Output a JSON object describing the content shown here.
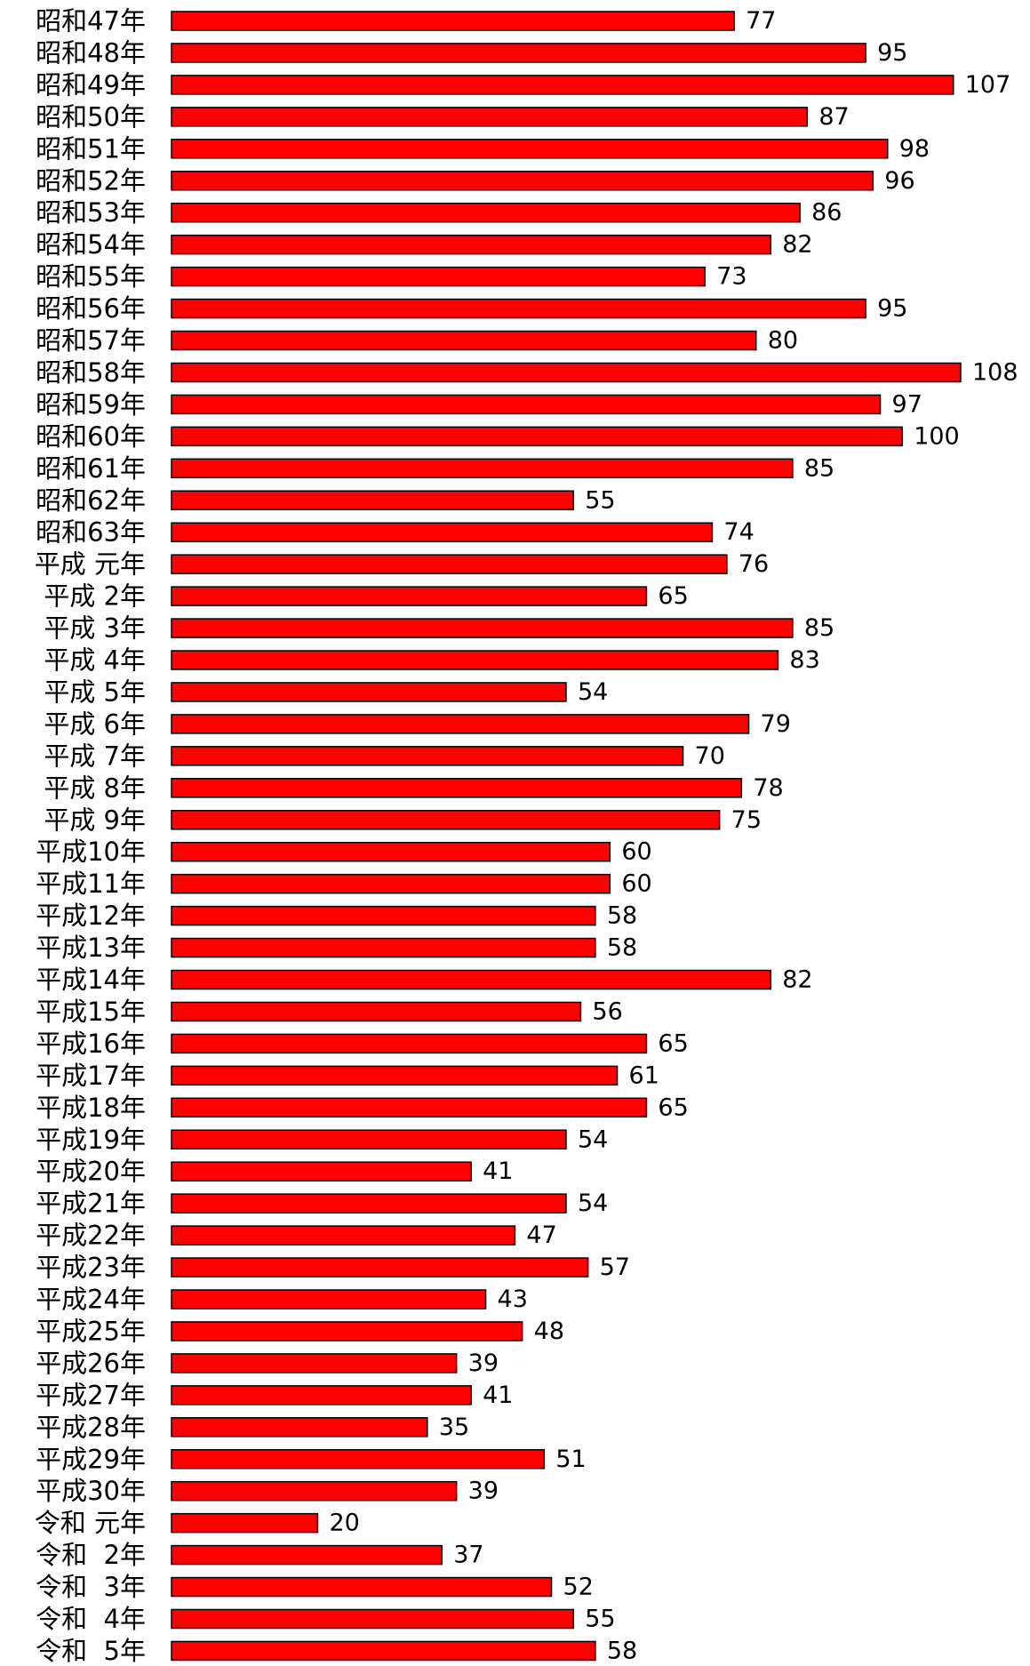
{
  "chart_data": {
    "type": "bar",
    "orientation": "horizontal",
    "bar_color": "#FF0000",
    "bar_border_color": "#000000",
    "grid": false,
    "legend": "none",
    "xlim": [
      0,
      108
    ],
    "categories": [
      "昭和47年",
      "昭和48年",
      "昭和49年",
      "昭和50年",
      "昭和51年",
      "昭和52年",
      "昭和53年",
      "昭和54年",
      "昭和55年",
      "昭和56年",
      "昭和57年",
      "昭和58年",
      "昭和59年",
      "昭和60年",
      "昭和61年",
      "昭和62年",
      "昭和63年",
      "平成 元年",
      "平成 2年",
      "平成 3年",
      "平成 4年",
      "平成 5年",
      "平成 6年",
      "平成 7年",
      "平成 8年",
      "平成 9年",
      "平成10年",
      "平成11年",
      "平成12年",
      "平成13年",
      "平成14年",
      "平成15年",
      "平成16年",
      "平成17年",
      "平成18年",
      "平成19年",
      "平成20年",
      "平成21年",
      "平成22年",
      "平成23年",
      "平成24年",
      "平成25年",
      "平成26年",
      "平成27年",
      "平成28年",
      "平成29年",
      "平成30年",
      "令和 元年",
      "令和  2年",
      "令和  3年",
      "令和  4年",
      "令和  5年"
    ],
    "values": [
      77,
      95,
      107,
      87,
      98,
      96,
      86,
      82,
      73,
      95,
      80,
      108,
      97,
      100,
      85,
      55,
      74,
      76,
      65,
      85,
      83,
      54,
      79,
      70,
      78,
      75,
      60,
      60,
      58,
      58,
      82,
      56,
      65,
      61,
      65,
      54,
      41,
      54,
      47,
      57,
      43,
      48,
      39,
      41,
      35,
      51,
      39,
      20,
      37,
      52,
      55,
      58
    ]
  }
}
